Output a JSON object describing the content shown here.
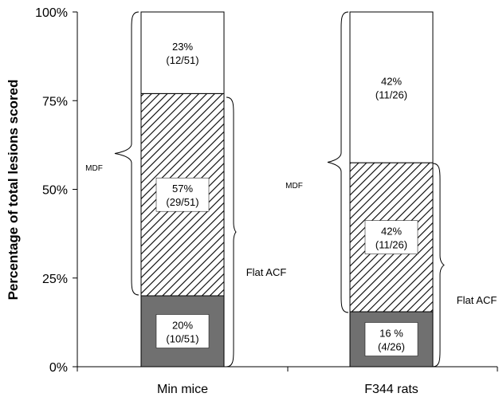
{
  "chart_data": {
    "type": "bar",
    "stacked": true,
    "ylabel": "Percentage of total lesions scored",
    "yticks": [
      "0%",
      "25%",
      "50%",
      "75%",
      "100%"
    ],
    "ylim": [
      0,
      100
    ],
    "categories": [
      "Min mice",
      "F344 rats"
    ],
    "series": [
      {
        "fill": "#707070",
        "values": [
          20,
          15.5
        ],
        "labels": [
          [
            "20%",
            "(10/51)"
          ],
          [
            "16 %",
            "(4/26)"
          ]
        ]
      },
      {
        "fill": "hatch",
        "values": [
          57,
          42
        ],
        "labels": [
          [
            "57%",
            "(29/51)"
          ],
          [
            "42%",
            "(11/26)"
          ]
        ]
      },
      {
        "fill": "#ffffff",
        "values": [
          23,
          42.5
        ],
        "labels": [
          [
            "23%",
            "(12/51)"
          ],
          [
            "42%",
            "(11/26)"
          ]
        ]
      }
    ],
    "annotations": {
      "mdf_label": "MDF",
      "flat_acf_label": "Flat ACF"
    }
  }
}
